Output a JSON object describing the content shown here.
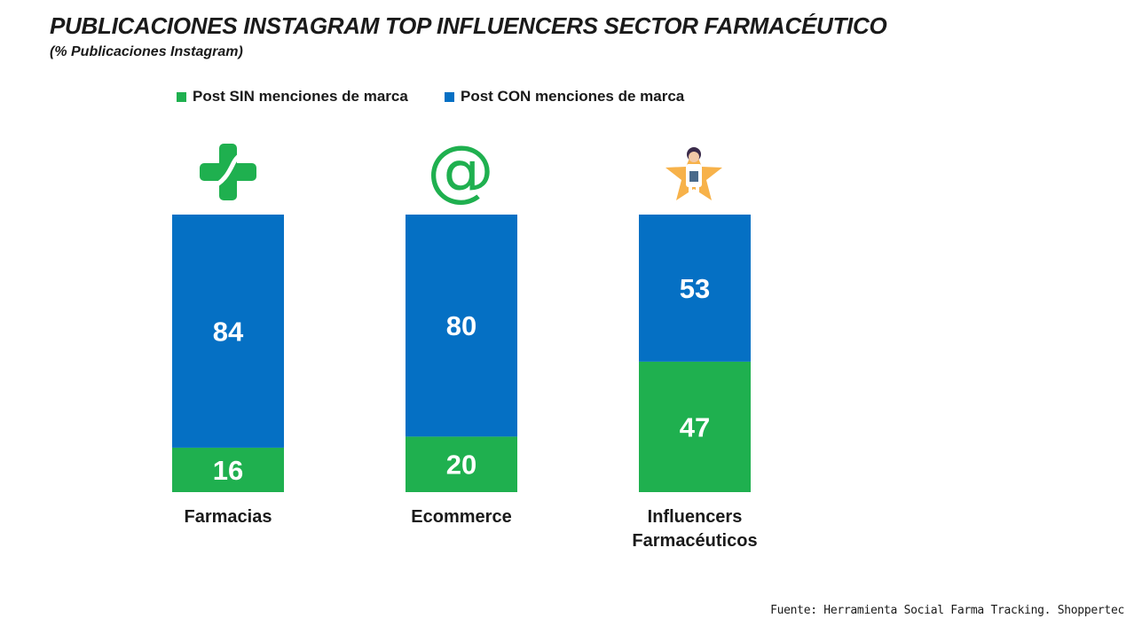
{
  "title": "PUBLICACIONES INSTAGRAM TOP INFLUENCERS SECTOR FARMACÉUTICO",
  "subtitle": "(% Publicaciones Instagram)",
  "source": "Fuente: Herramienta Social Farma Tracking. Shoppertec",
  "colors": {
    "sin": "#1fb04f",
    "con": "#0570c4",
    "star": "#f7b24a"
  },
  "icons": [
    "pharmacy-cross-icon",
    "at-sign-icon",
    "pharmacist-star-icon"
  ],
  "chart_data": {
    "type": "bar",
    "stacked": true,
    "categories": [
      "Farmacias",
      "Ecommerce",
      "Influencers Farmacéuticos"
    ],
    "category_lines": [
      [
        "Farmacias"
      ],
      [
        "Ecommerce"
      ],
      [
        "Influencers",
        "Farmacéuticos"
      ]
    ],
    "series": [
      {
        "name": "Post SIN menciones de marca",
        "values": [
          16,
          20,
          47
        ]
      },
      {
        "name": "Post CON menciones de marca",
        "values": [
          84,
          80,
          53
        ]
      }
    ],
    "ylim": [
      0,
      100
    ],
    "grid": false,
    "legend": "top"
  }
}
